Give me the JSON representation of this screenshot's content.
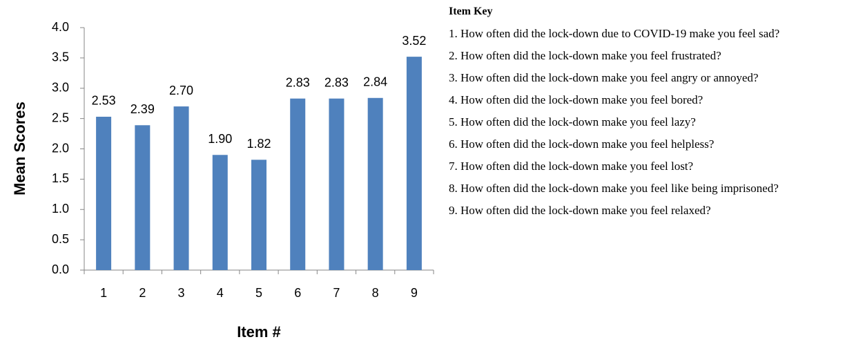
{
  "chart_data": {
    "type": "bar",
    "y_label": "Mean Scores",
    "x_label": "Item #",
    "categories": [
      "1",
      "2",
      "3",
      "4",
      "5",
      "6",
      "7",
      "8",
      "9"
    ],
    "values": [
      2.53,
      2.39,
      2.7,
      1.9,
      1.82,
      2.83,
      2.83,
      2.84,
      3.52
    ],
    "value_labels": [
      "2.53",
      "2.39",
      "2.70",
      "1.90",
      "1.82",
      "2.83",
      "2.83",
      "2.84",
      "3.52"
    ],
    "color": "#4f81bd",
    "ylim": [
      0,
      4
    ],
    "yticks": [
      {
        "value": 0,
        "label": "0.0"
      },
      0.5,
      {
        "value": 1,
        "label": "1.0"
      },
      1.5,
      {
        "value": 2,
        "label": "2.0"
      },
      2.5,
      {
        "value": 3,
        "label": "3.0"
      },
      3.5,
      {
        "value": 4,
        "label": "4.0"
      }
    ],
    "grid": false
  },
  "item_key": {
    "title": "Item Key",
    "items": [
      "1.  How often did the lock-down due to COVID-19 make you feel sad?",
      "2. How often did the lock-down make you feel frustrated?",
      "3. How often did the lock-down make you feel angry or annoyed?",
      "4. How often did the lock-down make you feel bored?",
      "5. How often did the lock-down make you feel lazy?",
      "6. How often did the lock-down make you feel helpless?",
      "7. How often did the lock-down make you feel lost?",
      "8. How often did the lock-down make you feel like being imprisoned?",
      "9. How often did the lock-down make you feel relaxed?"
    ]
  }
}
